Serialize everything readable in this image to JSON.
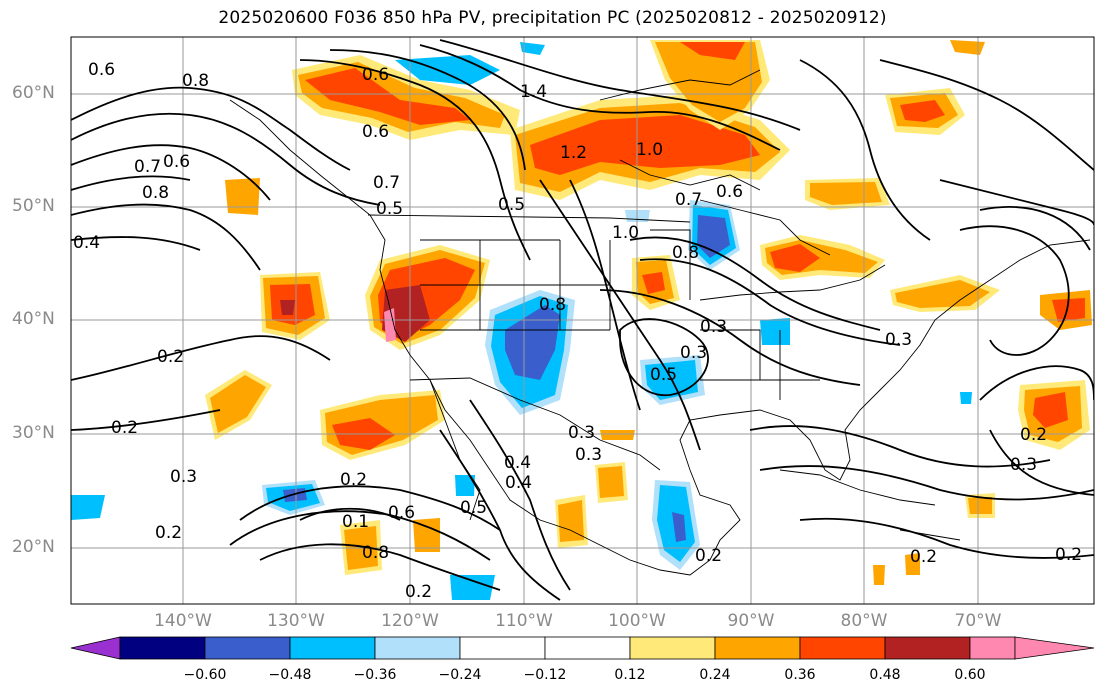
{
  "title": "2025020600 F036 850 hPa PV, precipitation PC (2025020812 - 2025020912)",
  "lat_labels": [
    "60°N",
    "50°N",
    "40°N",
    "30°N",
    "20°N"
  ],
  "lon_labels": [
    "140°W",
    "130°W",
    "120°W",
    "110°W",
    "100°W",
    "90°W",
    "80°W",
    "70°W"
  ],
  "colorbar": {
    "ticks": [
      "−0.60",
      "−0.48",
      "−0.36",
      "−0.24",
      "−0.12",
      "0.12",
      "0.24",
      "0.36",
      "0.48",
      "0.60"
    ],
    "colors": [
      "#9b30d0",
      "#000080",
      "#3a5fcd",
      "#00bfff",
      "#b0e0fa",
      "#ffffff",
      "#ffe978",
      "#ffa500",
      "#ff4500",
      "#b22222",
      "#ff88b0"
    ]
  },
  "contour_labels": [
    "0.8",
    "0.6",
    "0.6",
    "0.6",
    "0.7",
    "0.8",
    "0.6",
    "0.7",
    "0.5",
    "0.4",
    "0.5",
    "1.4",
    "1.2",
    "1.0",
    "0.6",
    "0.7",
    "1.0",
    "0.8",
    "0.3",
    "0.8",
    "0.3",
    "0.2",
    "0.5",
    "0.3",
    "0.2",
    "0.2",
    "0.3",
    "0.4",
    "0.3",
    "0.3",
    "0.2",
    "0.1",
    "0.6",
    "0.8",
    "0.2",
    "0.4",
    "0.5",
    "0.2",
    "0.2",
    "0.3",
    "0.2",
    "0.2"
  ]
}
